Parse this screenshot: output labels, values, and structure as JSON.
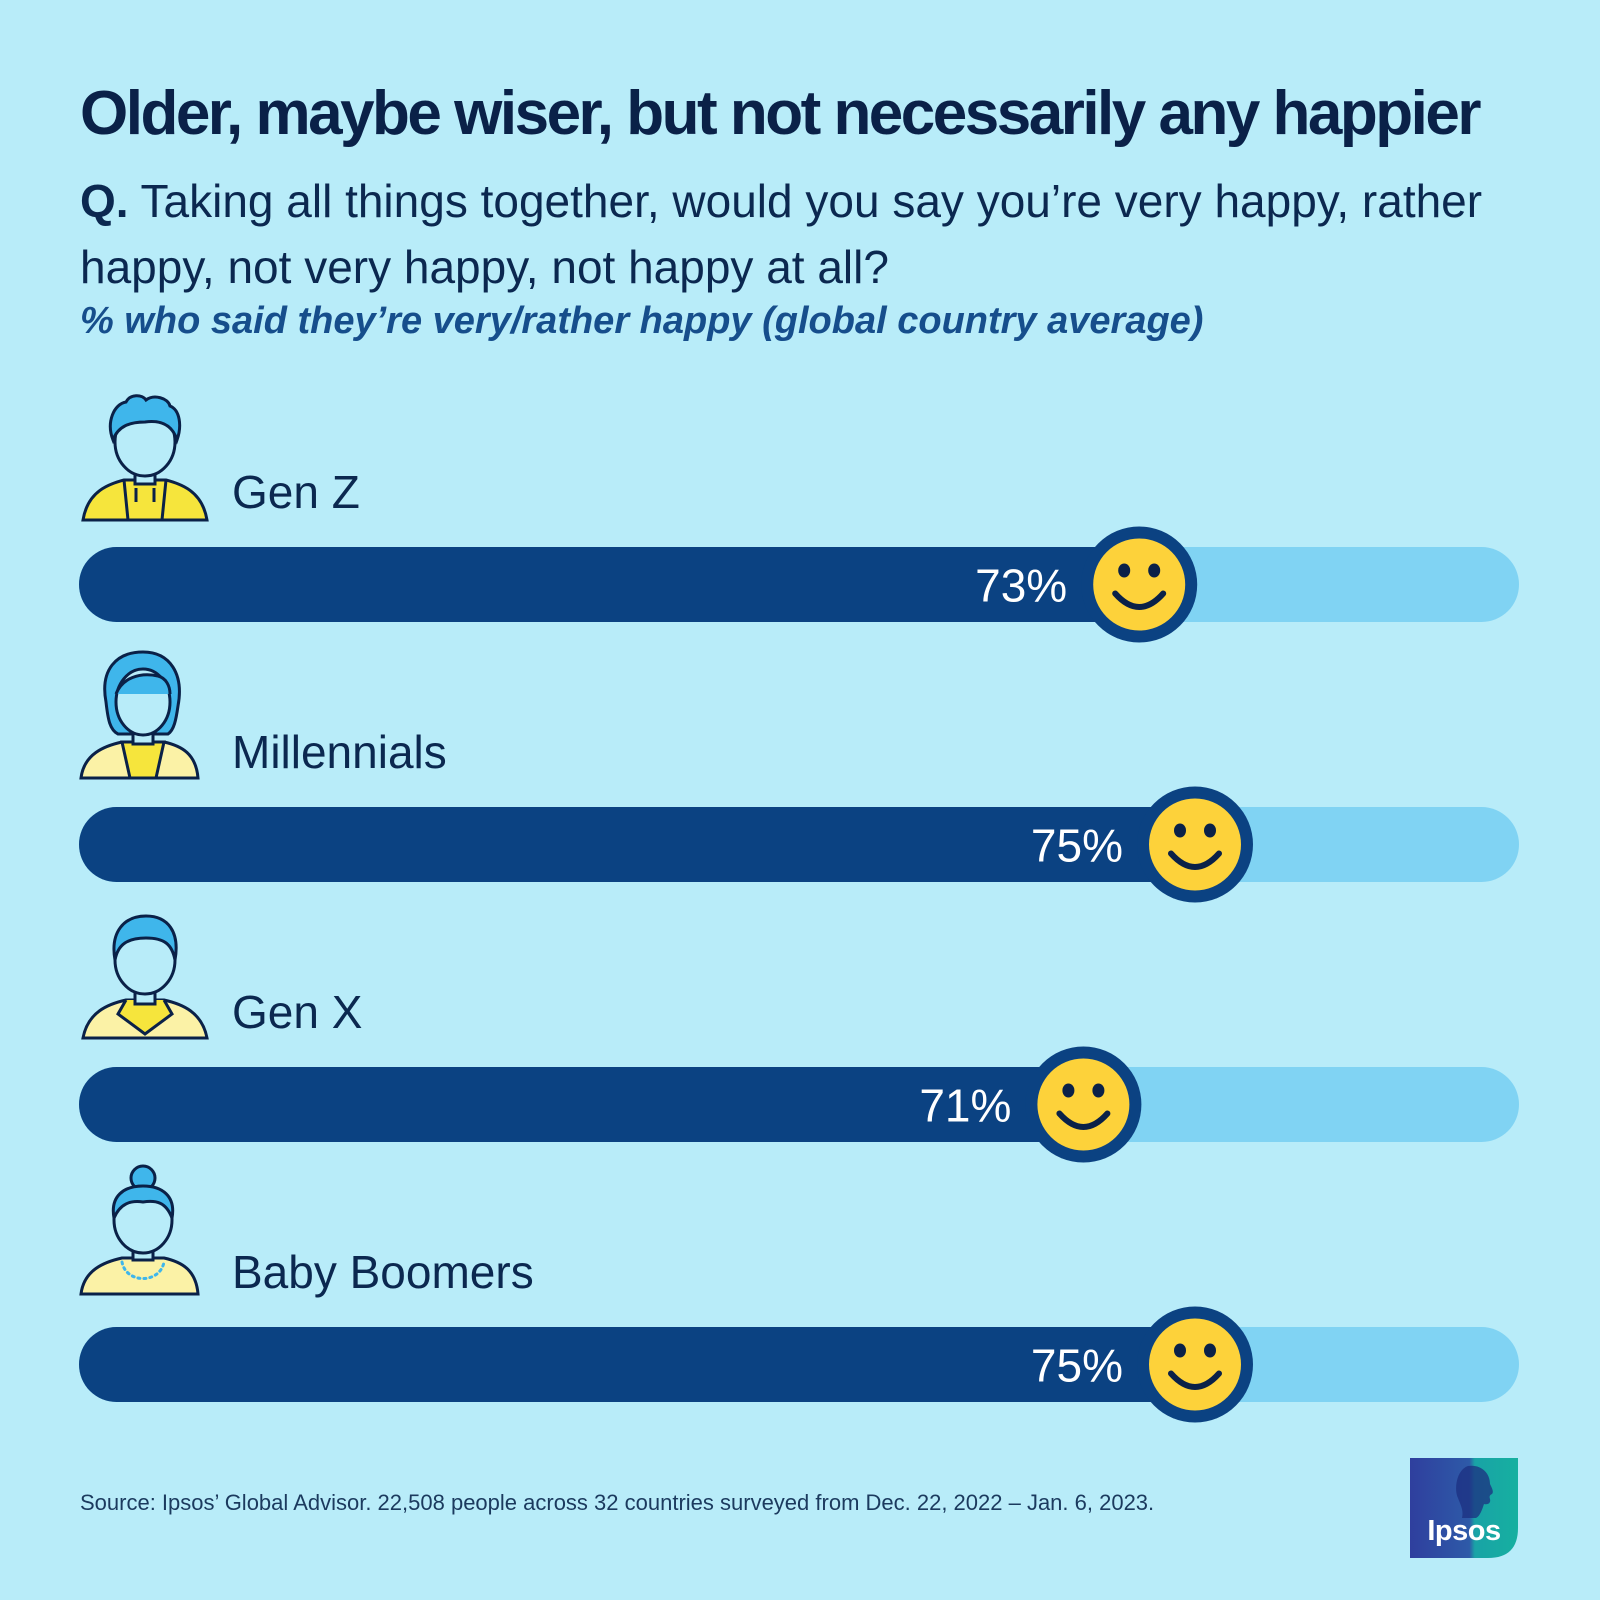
{
  "title": "Older, maybe wiser, but not necessarily any happier",
  "question": {
    "prefix": "Q.",
    "text": "Taking all things together, would you say you’re very happy, rather happy, not very happy, not happy at all?"
  },
  "subtitle": "% who said they’re very/rather happy (global country average)",
  "chart_data": {
    "type": "bar",
    "orientation": "horizontal",
    "categories": [
      "Gen Z",
      "Millennials",
      "Gen X",
      "Baby Boomers"
    ],
    "values": [
      73,
      75,
      71,
      75
    ],
    "value_labels": [
      "73%",
      "75%",
      "71%",
      "75%"
    ],
    "unit": "%",
    "xlim": [
      0,
      100
    ],
    "icons": [
      "gen-z-person-icon",
      "millennial-person-icon",
      "gen-x-person-icon",
      "baby-boomer-person-icon"
    ],
    "marker_icon": "smiley-face-icon"
  },
  "source": "Source: Ipsos’ Global Advisor. 22,508 people across 32 countries surveyed from Dec. 22, 2022 – Jan. 6, 2023.",
  "logo": {
    "text": "Ipsos"
  },
  "colors": {
    "background": "#b8ecf9",
    "bar_fill": "#0b4282",
    "bar_track": "#80d3f3",
    "smiley": "#fdd23a",
    "icon_hair": "#3fb6eb",
    "icon_shirt": "#f6e53c"
  }
}
